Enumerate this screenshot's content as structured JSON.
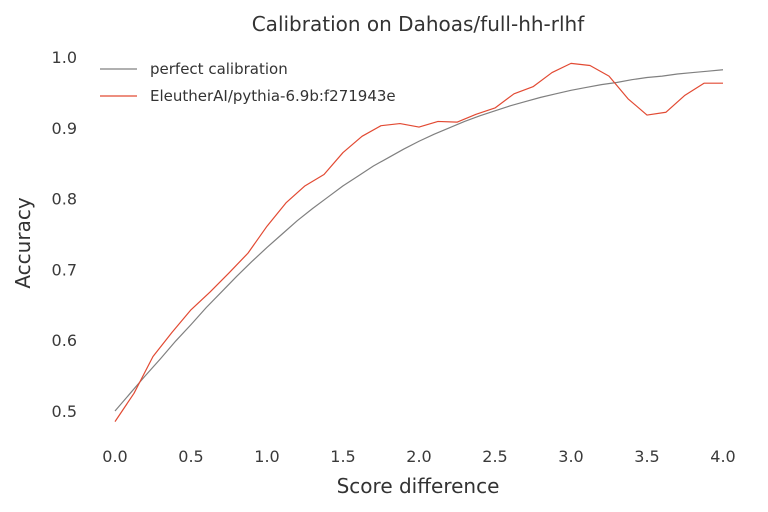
{
  "chart_data": {
    "type": "line",
    "title": "Calibration on Dahoas/full-hh-rlhf",
    "xlabel": "Score difference",
    "ylabel": "Accuracy",
    "xlim": [
      0.0,
      4.0
    ],
    "ylim": [
      0.5,
      1.0
    ],
    "x_ticks": [
      "0.0",
      "0.5",
      "1.0",
      "1.5",
      "2.0",
      "2.5",
      "3.0",
      "3.5",
      "4.0"
    ],
    "y_ticks": [
      "0.5",
      "0.6",
      "0.7",
      "0.8",
      "0.9",
      "1.0"
    ],
    "grid": false,
    "legend_position": "top-left",
    "series": [
      {
        "name": "perfect calibration",
        "color": "#808080",
        "x": [
          0.0,
          0.1,
          0.2,
          0.3,
          0.4,
          0.5,
          0.6,
          0.7,
          0.8,
          0.9,
          1.0,
          1.1,
          1.2,
          1.3,
          1.4,
          1.5,
          1.6,
          1.7,
          1.8,
          1.9,
          2.0,
          2.1,
          2.2,
          2.3,
          2.4,
          2.5,
          2.6,
          2.7,
          2.8,
          2.9,
          3.0,
          3.1,
          3.2,
          3.3,
          3.4,
          3.5,
          3.6,
          3.7,
          3.8,
          3.9,
          4.0
        ],
        "y": [
          0.5,
          0.525,
          0.55,
          0.574,
          0.599,
          0.622,
          0.646,
          0.668,
          0.69,
          0.711,
          0.731,
          0.75,
          0.769,
          0.786,
          0.802,
          0.818,
          0.832,
          0.846,
          0.858,
          0.87,
          0.881,
          0.891,
          0.9,
          0.909,
          0.917,
          0.924,
          0.931,
          0.937,
          0.943,
          0.948,
          0.953,
          0.957,
          0.961,
          0.964,
          0.968,
          0.971,
          0.973,
          0.976,
          0.978,
          0.98,
          0.982
        ]
      },
      {
        "name": "EleutherAI/pythia-6.9b:f271943e",
        "color": "#e24a33",
        "x": [
          0.0,
          0.125,
          0.25,
          0.375,
          0.5,
          0.625,
          0.75,
          0.875,
          1.0,
          1.125,
          1.25,
          1.375,
          1.5,
          1.625,
          1.75,
          1.875,
          2.0,
          2.125,
          2.25,
          2.375,
          2.5,
          2.625,
          2.75,
          2.875,
          3.0,
          3.125,
          3.25,
          3.375,
          3.5,
          3.625,
          3.75,
          3.875,
          4.0
        ],
        "y": [
          0.485,
          0.525,
          0.577,
          0.611,
          0.643,
          0.668,
          0.695,
          0.723,
          0.761,
          0.794,
          0.818,
          0.834,
          0.865,
          0.888,
          0.903,
          0.906,
          0.901,
          0.909,
          0.908,
          0.919,
          0.928,
          0.948,
          0.958,
          0.978,
          0.991,
          0.988,
          0.973,
          0.941,
          0.918,
          0.922,
          0.946,
          0.963,
          0.963
        ]
      }
    ]
  }
}
